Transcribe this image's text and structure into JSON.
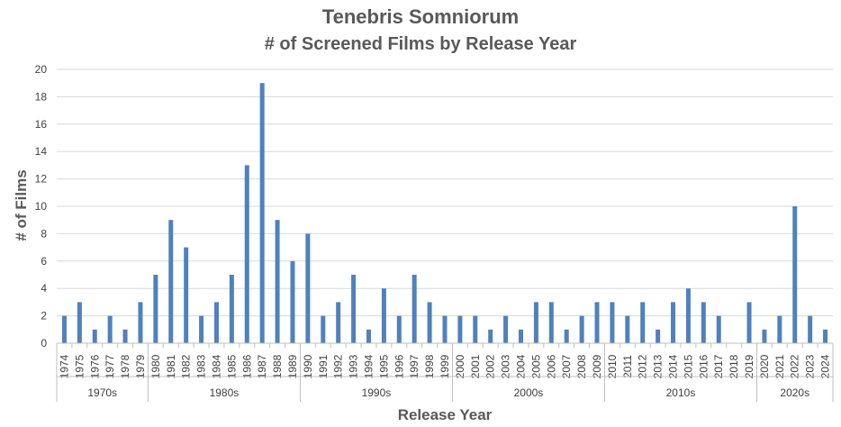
{
  "chart_data": {
    "type": "bar",
    "title": "Tenebris Somniorum",
    "subtitle": "# of Screened Films by Release Year",
    "xlabel": "Release Year",
    "ylabel": "# of Films",
    "ylim": [
      0,
      20
    ],
    "yticks": [
      0,
      2,
      4,
      6,
      8,
      10,
      12,
      14,
      16,
      18,
      20
    ],
    "grid": true,
    "legend": "none",
    "categories": [
      "1974",
      "1975",
      "1976",
      "1977",
      "1978",
      "1979",
      "1980",
      "1981",
      "1982",
      "1983",
      "1984",
      "1985",
      "1986",
      "1987",
      "1988",
      "1989",
      "1990",
      "1991",
      "1992",
      "1993",
      "1994",
      "1995",
      "1996",
      "1997",
      "1998",
      "1999",
      "2000",
      "2001",
      "2002",
      "2003",
      "2004",
      "2005",
      "2006",
      "2007",
      "2008",
      "2009",
      "2010",
      "2011",
      "2012",
      "2013",
      "2014",
      "2015",
      "2016",
      "2017",
      "2018",
      "2019",
      "2020",
      "2021",
      "2022",
      "2023",
      "2024"
    ],
    "values": [
      2,
      3,
      1,
      2,
      1,
      3,
      5,
      9,
      7,
      2,
      3,
      5,
      13,
      19,
      9,
      6,
      8,
      2,
      3,
      5,
      1,
      4,
      2,
      5,
      3,
      2,
      2,
      2,
      1,
      2,
      1,
      3,
      3,
      1,
      2,
      3,
      3,
      2,
      3,
      1,
      3,
      4,
      3,
      2,
      0,
      3,
      1,
      2,
      10,
      2,
      1
    ],
    "groups": [
      {
        "label": "1970s",
        "count": 6
      },
      {
        "label": "1980s",
        "count": 10
      },
      {
        "label": "1990s",
        "count": 10
      },
      {
        "label": "2000s",
        "count": 10
      },
      {
        "label": "2010s",
        "count": 10
      },
      {
        "label": "2020s",
        "count": 5
      }
    ],
    "bar_color": "#4f81bd"
  }
}
